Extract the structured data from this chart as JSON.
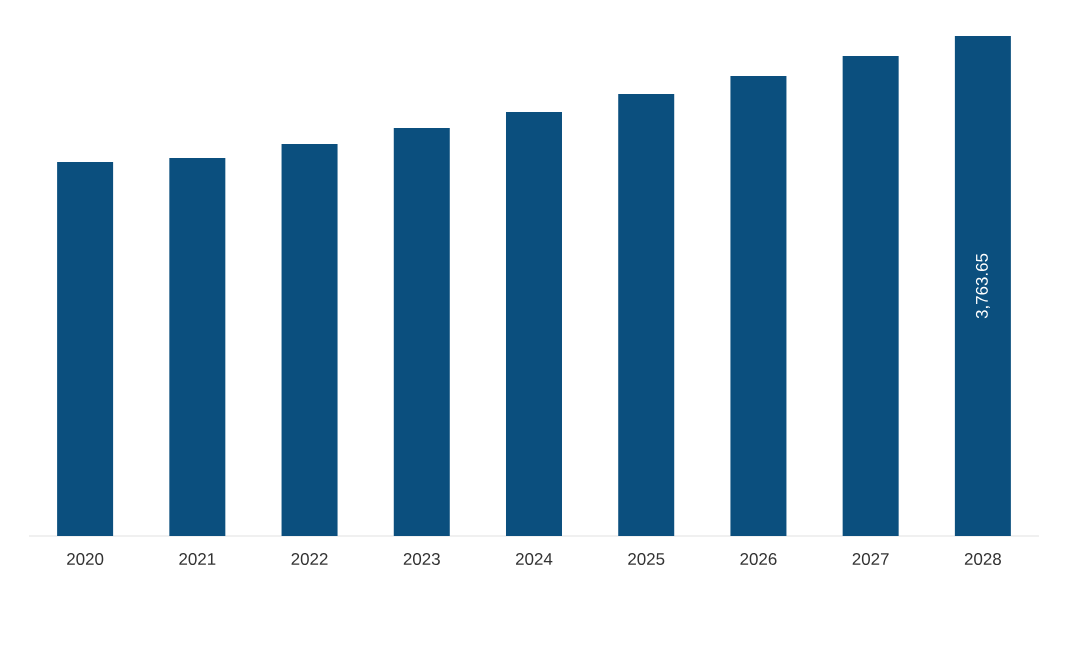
{
  "chart_data": {
    "type": "bar",
    "color": "#0b4f7e",
    "categories": [
      "2020",
      "2021",
      "2022",
      "2023",
      "2024",
      "2025",
      "2026",
      "2027",
      "2028"
    ],
    "values": [
      2815,
      2845,
      2951,
      3071,
      3192,
      3327,
      3463,
      3613,
      3763.65
    ],
    "value_labels": [
      null,
      null,
      null,
      null,
      null,
      null,
      null,
      null,
      "3,763.65"
    ]
  }
}
